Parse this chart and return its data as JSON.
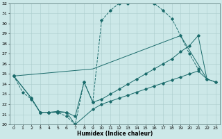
{
  "xlabel": "Humidex (Indice chaleur)",
  "background_color": "#cce8e8",
  "grid_color": "#aacccc",
  "line_color": "#1a6b6b",
  "xlim": [
    -0.5,
    23.5
  ],
  "ylim": [
    20,
    32
  ],
  "yticks": [
    20,
    21,
    22,
    23,
    24,
    25,
    26,
    27,
    28,
    29,
    30,
    31,
    32
  ],
  "xticks": [
    0,
    1,
    2,
    3,
    4,
    5,
    6,
    7,
    8,
    9,
    10,
    11,
    12,
    13,
    14,
    15,
    16,
    17,
    18,
    19,
    20,
    21,
    22,
    23
  ],
  "series1_x": [
    0,
    1,
    2,
    3,
    4,
    5,
    6,
    7,
    8,
    9,
    10,
    11,
    12,
    13,
    14,
    15,
    16,
    17,
    18,
    19,
    20,
    21
  ],
  "series1_y": [
    24.8,
    23.2,
    22.5,
    21.2,
    21.2,
    21.2,
    20.8,
    20.0,
    24.2,
    22.2,
    30.3,
    31.3,
    32.0,
    32.0,
    32.2,
    32.2,
    32.0,
    31.3,
    30.5,
    28.8,
    27.0,
    25.5
  ],
  "series2_x": [
    0,
    9,
    19,
    22
  ],
  "series2_y": [
    24.8,
    25.5,
    28.8,
    24.5
  ],
  "series3_x": [
    0,
    2,
    3,
    4,
    5,
    6,
    7,
    8,
    9,
    10,
    11,
    12,
    13,
    14,
    15,
    16,
    17,
    18,
    19,
    20,
    21,
    22,
    23
  ],
  "series3_y": [
    24.8,
    22.6,
    21.2,
    21.2,
    21.3,
    21.2,
    20.8,
    24.2,
    22.2,
    22.5,
    23.0,
    23.5,
    24.0,
    24.5,
    25.0,
    25.5,
    26.0,
    26.5,
    27.2,
    27.8,
    28.8,
    24.5,
    24.2
  ],
  "series4_x": [
    0,
    2,
    3,
    4,
    5,
    6,
    7,
    9,
    10,
    11,
    12,
    13,
    14,
    15,
    16,
    17,
    18,
    19,
    20,
    21,
    22,
    23
  ],
  "series4_y": [
    24.8,
    22.6,
    21.2,
    21.2,
    21.2,
    21.2,
    20.0,
    21.5,
    22.0,
    22.3,
    22.6,
    22.9,
    23.2,
    23.5,
    23.8,
    24.1,
    24.4,
    24.7,
    25.0,
    25.3,
    24.5,
    24.2
  ]
}
